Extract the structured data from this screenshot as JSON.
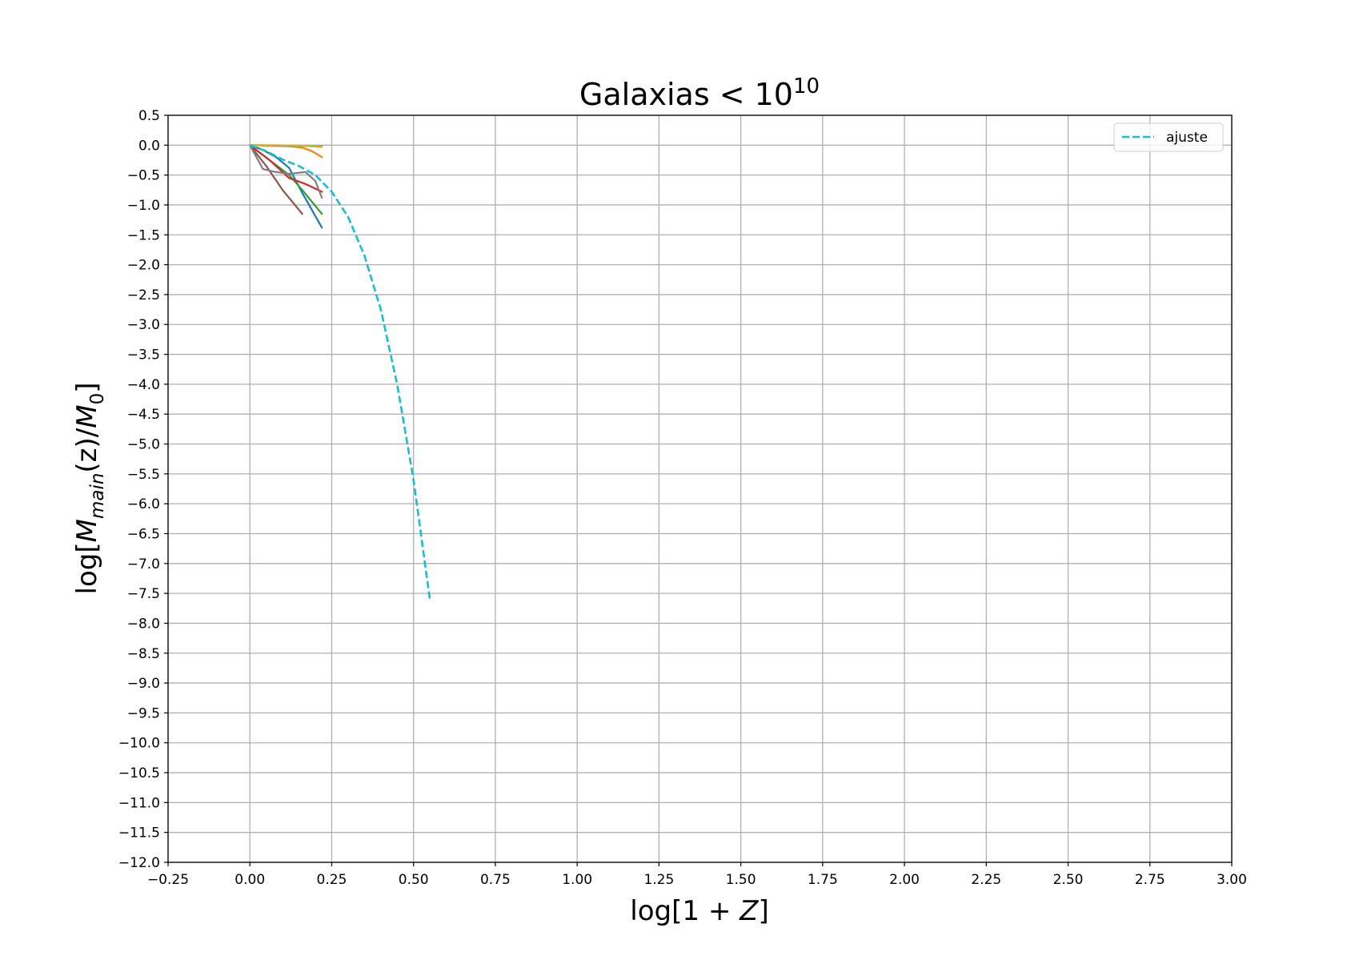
{
  "chart_data": {
    "type": "line",
    "title": {
      "text": "Galaxias < 10",
      "superscript": "10"
    },
    "xlabel": {
      "prefix": "log[1 + ",
      "var": "Z",
      "suffix": "]"
    },
    "ylabel": {
      "prefix": "log[",
      "m1": "M",
      "m1_sub": "main",
      "mid": "(z)/",
      "m2": "M",
      "m2_sub": "0",
      "suffix": "]"
    },
    "xlim": [
      -0.25,
      3.0
    ],
    "ylim": [
      -12.0,
      0.5
    ],
    "xticks": [
      -0.25,
      0.0,
      0.25,
      0.5,
      0.75,
      1.0,
      1.25,
      1.5,
      1.75,
      2.0,
      2.25,
      2.5,
      2.75,
      3.0
    ],
    "xtick_labels": [
      "−0.25",
      "0.00",
      "0.25",
      "0.50",
      "0.75",
      "1.00",
      "1.25",
      "1.50",
      "1.75",
      "2.00",
      "2.25",
      "2.50",
      "2.75",
      "3.00"
    ],
    "yticks": [
      0.5,
      0.0,
      -0.5,
      -1.0,
      -1.5,
      -2.0,
      -2.5,
      -3.0,
      -3.5,
      -4.0,
      -4.5,
      -5.0,
      -5.5,
      -6.0,
      -6.5,
      -7.0,
      -7.5,
      -8.0,
      -8.5,
      -9.0,
      -9.5,
      -10.0,
      -10.5,
      -11.0,
      -11.5,
      -12.0
    ],
    "ytick_labels": [
      "0.5",
      "0.0",
      "−0.5",
      "−1.0",
      "−1.5",
      "−2.0",
      "−2.5",
      "−3.0",
      "−3.5",
      "−4.0",
      "−4.5",
      "−5.0",
      "−5.5",
      "−6.0",
      "−6.5",
      "−7.0",
      "−7.5",
      "−8.0",
      "−8.5",
      "−9.0",
      "−9.5",
      "−10.0",
      "−10.5",
      "−11.0",
      "−11.5",
      "−12.0"
    ],
    "grid": true,
    "legend": {
      "position": "top-right",
      "entries": [
        {
          "label": "ajuste",
          "color": "#17becf",
          "style": "dashed"
        }
      ]
    },
    "series": [
      {
        "color": "#1f77b4",
        "style": "solid",
        "x": [
          0.0,
          0.04,
          0.08,
          0.12,
          0.16,
          0.22
        ],
        "y": [
          0.0,
          -0.08,
          -0.2,
          -0.38,
          -0.8,
          -1.38
        ]
      },
      {
        "color": "#ff7f0e",
        "style": "solid",
        "x": [
          0.0,
          0.06,
          0.12,
          0.16,
          0.19,
          0.22
        ],
        "y": [
          0.0,
          -0.01,
          -0.02,
          -0.04,
          -0.1,
          -0.2
        ]
      },
      {
        "color": "#2ca02c",
        "style": "solid",
        "x": [
          0.0,
          0.06,
          0.12,
          0.16,
          0.22
        ],
        "y": [
          0.0,
          -0.25,
          -0.5,
          -0.75,
          -1.15
        ]
      },
      {
        "color": "#d62728",
        "style": "solid",
        "x": [
          0.0,
          0.06,
          0.12,
          0.17,
          0.22
        ],
        "y": [
          0.0,
          -0.25,
          -0.55,
          -0.65,
          -0.78
        ]
      },
      {
        "color": "#9467bd",
        "style": "solid",
        "x": [
          0.0,
          0.08,
          0.16,
          0.22
        ],
        "y": [
          0.0,
          -0.005,
          -0.01,
          -0.02
        ]
      },
      {
        "color": "#8c564b",
        "style": "solid",
        "x": [
          0.0,
          0.05,
          0.1,
          0.16
        ],
        "y": [
          0.0,
          -0.35,
          -0.75,
          -1.15
        ]
      },
      {
        "color": "#e377c2",
        "style": "solid",
        "x": [
          0.0,
          0.1,
          0.22
        ],
        "y": [
          0.0,
          -0.005,
          -0.01
        ]
      },
      {
        "color": "#7f7f7f",
        "style": "solid",
        "x": [
          0.0,
          0.04,
          0.08,
          0.12,
          0.17,
          0.2,
          0.22
        ],
        "y": [
          0.0,
          -0.4,
          -0.45,
          -0.48,
          -0.45,
          -0.6,
          -0.88
        ]
      },
      {
        "color": "#bcbd22",
        "style": "solid",
        "x": [
          0.0,
          0.08,
          0.16,
          0.22
        ],
        "y": [
          0.0,
          0.0,
          -0.01,
          -0.03
        ]
      },
      {
        "name": "ajuste",
        "color": "#17becf",
        "style": "dashed",
        "x": [
          0.0,
          0.05,
          0.1,
          0.15,
          0.2,
          0.25,
          0.3,
          0.35,
          0.4,
          0.45,
          0.5,
          0.55
        ],
        "y": [
          0.0,
          -0.1,
          -0.24,
          -0.35,
          -0.5,
          -0.78,
          -1.2,
          -1.85,
          -2.75,
          -4.0,
          -5.6,
          -7.6
        ]
      }
    ]
  }
}
